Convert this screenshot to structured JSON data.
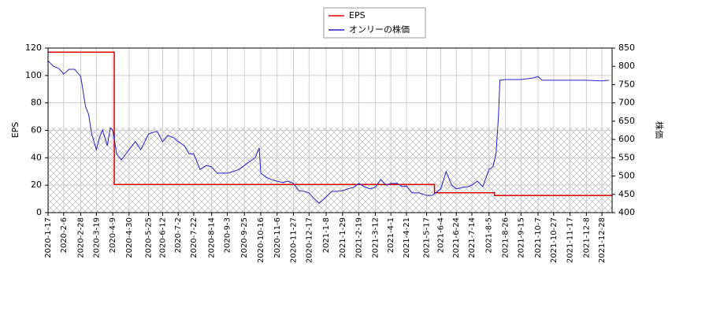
{
  "chart_data": {
    "type": "line",
    "y_label": "EPS",
    "y2_label": "株価",
    "xlim": [
      "2020-1-17",
      "2022-1-10"
    ],
    "xticks": [
      "2020-1-17",
      "2020-2-6",
      "2020-2-28",
      "2020-3-19",
      "2020-4-9",
      "2020-4-30",
      "2020-5-25",
      "2020-6-12",
      "2020-7-2",
      "2020-7-22",
      "2020-8-14",
      "2020-9-3",
      "2020-9-25",
      "2020-10-16",
      "2020-11-6",
      "2020-11-27",
      "2020-12-17",
      "2021-1-8",
      "2021-1-29",
      "2021-2-19",
      "2021-3-12",
      "2021-4-1",
      "2021-4-21",
      "2021-5-17",
      "2021-6-4",
      "2021-6-24",
      "2021-7-14",
      "2021-8-5",
      "2021-8-26",
      "2021-9-15",
      "2021-10-7",
      "2021-10-27",
      "2021-11-17",
      "2021-12-8",
      "2021-12-28"
    ],
    "ylim": [
      0,
      120
    ],
    "yticks": [
      0,
      20,
      40,
      60,
      80,
      100,
      120
    ],
    "y2lim": [
      400,
      850
    ],
    "y2ticks": [
      400,
      450,
      500,
      550,
      600,
      650,
      700,
      750,
      800,
      850
    ],
    "grid": true,
    "legend": "top",
    "series": [
      {
        "name": "EPS",
        "color": "#dd0000",
        "step": "post",
        "x": [
          "2020-1-17",
          "2020-4-11",
          "2021-5-27",
          "2021-8-12",
          "2022-1-10"
        ],
        "values": [
          117,
          20.5,
          14.5,
          12.5,
          12.5
        ]
      },
      {
        "name": "オンリーの株価",
        "color": "#2222cc",
        "axis": "y2",
        "x": [
          "2020-1-17",
          "2020-1-24",
          "2020-1-31",
          "2020-2-6",
          "2020-2-13",
          "2020-2-20",
          "2020-2-28",
          "2020-3-5",
          "2020-3-9",
          "2020-3-13",
          "2020-3-19",
          "2020-3-23",
          "2020-3-27",
          "2020-4-2",
          "2020-4-6",
          "2020-4-9",
          "2020-4-14",
          "2020-4-20",
          "2020-4-30",
          "2020-5-8",
          "2020-5-15",
          "2020-5-25",
          "2020-6-1",
          "2020-6-5",
          "2020-6-12",
          "2020-6-19",
          "2020-6-26",
          "2020-7-2",
          "2020-7-10",
          "2020-7-16",
          "2020-7-22",
          "2020-7-30",
          "2020-8-7",
          "2020-8-14",
          "2020-8-21",
          "2020-8-28",
          "2020-9-3",
          "2020-9-10",
          "2020-9-18",
          "2020-9-25",
          "2020-10-2",
          "2020-10-9",
          "2020-10-14",
          "2020-10-16",
          "2020-10-23",
          "2020-10-30",
          "2020-11-6",
          "2020-11-13",
          "2020-11-20",
          "2020-11-27",
          "2020-12-4",
          "2020-12-11",
          "2020-12-17",
          "2020-12-24",
          "2020-12-30",
          "2021-1-8",
          "2021-1-15",
          "2021-1-22",
          "2021-1-29",
          "2021-2-5",
          "2021-2-12",
          "2021-2-19",
          "2021-2-26",
          "2021-3-5",
          "2021-3-12",
          "2021-3-19",
          "2021-3-26",
          "2021-4-1",
          "2021-4-9",
          "2021-4-16",
          "2021-4-21",
          "2021-4-28",
          "2021-5-7",
          "2021-5-17",
          "2021-5-24",
          "2021-5-31",
          "2021-6-4",
          "2021-6-11",
          "2021-6-18",
          "2021-6-24",
          "2021-7-2",
          "2021-7-9",
          "2021-7-14",
          "2021-7-21",
          "2021-7-28",
          "2021-8-5",
          "2021-8-10",
          "2021-8-14",
          "2021-8-17",
          "2021-8-19",
          "2021-8-26",
          "2021-9-15",
          "2021-9-30",
          "2021-10-7",
          "2021-10-12",
          "2021-10-27",
          "2021-11-17",
          "2021-12-8",
          "2021-12-28",
          "2022-1-6"
        ],
        "values": [
          815,
          800,
          794,
          779,
          792,
          792,
          772,
          691,
          669,
          615,
          572,
          605,
          626,
          583,
          632,
          626,
          561,
          544,
          572,
          594,
          572,
          615,
          620,
          622,
          594,
          611,
          605,
          594,
          583,
          561,
          561,
          518,
          529,
          525,
          508,
          508,
          508,
          512,
          518,
          529,
          540,
          551,
          577,
          508,
          497,
          490,
          486,
          482,
          486,
          480,
          460,
          458,
          454,
          437,
          426,
          443,
          458,
          458,
          460,
          465,
          469,
          480,
          471,
          465,
          469,
          490,
          475,
          480,
          480,
          471,
          473,
          454,
          454,
          447,
          447,
          458,
          465,
          512,
          475,
          465,
          469,
          471,
          475,
          486,
          471,
          518,
          525,
          561,
          658,
          762,
          764,
          764,
          768,
          772,
          762,
          762,
          762,
          762,
          760,
          762
        ]
      }
    ]
  }
}
